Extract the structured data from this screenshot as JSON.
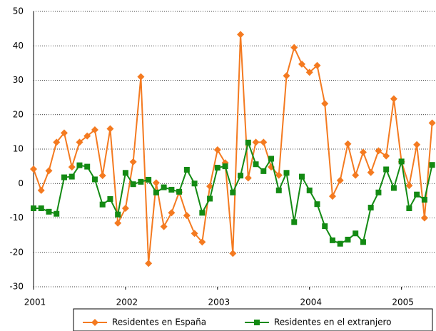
{
  "chart_data": {
    "type": "line",
    "x": [
      0,
      1,
      2,
      3,
      4,
      5,
      6,
      7,
      8,
      9,
      10,
      11,
      12,
      13,
      14,
      15,
      16,
      17,
      18,
      19,
      20,
      21,
      22,
      23,
      24,
      25,
      26,
      27,
      28,
      29,
      30,
      31,
      32,
      33,
      34,
      35,
      36,
      37,
      38,
      39,
      40,
      41,
      42,
      43,
      44,
      45,
      46,
      47,
      48,
      49,
      50,
      51,
      52
    ],
    "xlim": [
      0,
      52.5
    ],
    "xticks": [
      {
        "value": 0,
        "label": "2001"
      },
      {
        "value": 12,
        "label": "2002"
      },
      {
        "value": 24,
        "label": "2003"
      },
      {
        "value": 36,
        "label": "2004"
      },
      {
        "value": 48,
        "label": "2005"
      }
    ],
    "ylim": [
      -30,
      50
    ],
    "yticks": [
      -30,
      -20,
      -10,
      0,
      10,
      20,
      30,
      40,
      50
    ],
    "grid": true,
    "legend": "bottom",
    "series": [
      {
        "name": "Residentes en España",
        "color": "#f47a20",
        "marker": "diamond",
        "values": [
          4.2,
          -2,
          3.7,
          12,
          14.7,
          4.8,
          12,
          13.8,
          15.6,
          2.3,
          15.9,
          -11.5,
          -7.2,
          6.3,
          31,
          -23.2,
          0.2,
          -12.5,
          -8.5,
          -2.5,
          -9.3,
          -14.5,
          -17,
          -0.8,
          9.8,
          6,
          -20.3,
          43.3,
          1.6,
          12,
          12,
          4.8,
          2.4,
          31.3,
          39.5,
          34.7,
          32.3,
          34.3,
          23.2,
          -3.7,
          0.9,
          11.5,
          2.4,
          9.1,
          3.2,
          9.5,
          8,
          24.6,
          6.3,
          -0.6,
          11.3,
          -10,
          17.6
        ]
      },
      {
        "name": "Residentes en el extranjero",
        "color": "#138a13",
        "marker": "square",
        "values": [
          -7.2,
          -7.2,
          -8.2,
          -8.8,
          1.8,
          2,
          5.3,
          4.9,
          1.2,
          -6.1,
          -4.5,
          -9,
          3.1,
          -0.2,
          0.5,
          1.1,
          -2.6,
          -1.1,
          -1.8,
          -2.4,
          4,
          0,
          -8.5,
          -4.4,
          4.6,
          5,
          -2.6,
          2.3,
          11.9,
          5.6,
          3.6,
          7.2,
          -2,
          3.1,
          -11.2,
          2,
          -2,
          -6,
          -12.4,
          -16.5,
          -17.5,
          -16.3,
          -14.5,
          -17,
          -7,
          -2.6,
          4.1,
          -1.3,
          6.4,
          -7.2,
          -3.2,
          -4.7,
          5.4
        ]
      }
    ]
  }
}
